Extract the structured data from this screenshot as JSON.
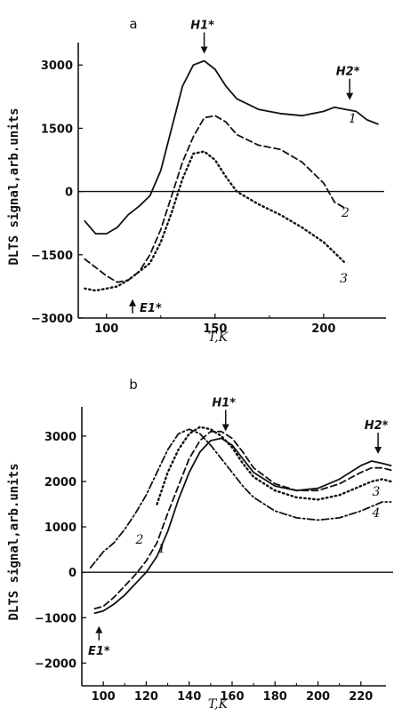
{
  "chart_data": [
    {
      "type": "line",
      "panel_label": "a",
      "xlabel": "T,K",
      "ylabel": "DLTS signal,arb.units",
      "xlim": [
        87,
        232
      ],
      "ylim": [
        -3000,
        3700
      ],
      "xticks": [
        100,
        150,
        200
      ],
      "yticks": [
        3000,
        1500,
        0,
        -1500,
        -3000
      ],
      "series": [
        {
          "name": "1",
          "style": "solid",
          "x": [
            90,
            95,
            100,
            105,
            110,
            115,
            120,
            125,
            130,
            135,
            140,
            145,
            150,
            155,
            160,
            170,
            180,
            190,
            200,
            205,
            210,
            215,
            220,
            225
          ],
          "y": [
            -700,
            -1000,
            -1000,
            -850,
            -550,
            -350,
            -100,
            500,
            1500,
            2500,
            3000,
            3100,
            2900,
            2500,
            2200,
            1950,
            1850,
            1800,
            1900,
            2000,
            1950,
            1900,
            1700,
            1600
          ]
        },
        {
          "name": "2",
          "style": "dashed",
          "x": [
            90,
            95,
            100,
            105,
            110,
            115,
            120,
            125,
            130,
            135,
            140,
            145,
            150,
            155,
            160,
            170,
            180,
            190,
            200,
            205,
            210
          ],
          "y": [
            -1600,
            -1800,
            -2000,
            -2150,
            -2100,
            -1900,
            -1500,
            -900,
            -100,
            700,
            1300,
            1750,
            1800,
            1650,
            1350,
            1100,
            1000,
            700,
            200,
            -250,
            -400
          ]
        },
        {
          "name": "3",
          "style": "dotted",
          "x": [
            90,
            95,
            100,
            105,
            110,
            115,
            120,
            125,
            130,
            135,
            140,
            145,
            150,
            155,
            160,
            170,
            180,
            190,
            200,
            205,
            210
          ],
          "y": [
            -2300,
            -2350,
            -2300,
            -2250,
            -2100,
            -1900,
            -1700,
            -1200,
            -500,
            300,
            900,
            950,
            750,
            350,
            0,
            -300,
            -550,
            -850,
            -1200,
            -1450,
            -1700
          ]
        }
      ],
      "annotations": [
        {
          "text": "H1*",
          "x": 145,
          "y": 3100,
          "arrow": "down"
        },
        {
          "text": "H2*",
          "x": 212,
          "y": 2000,
          "arrow": "down"
        },
        {
          "text": "E1*",
          "x": 112,
          "y": -2300,
          "arrow": "up"
        }
      ]
    },
    {
      "type": "line",
      "panel_label": "b",
      "xlabel": "T,K",
      "ylabel": "DLTS signal,arb.units",
      "xlim": [
        90,
        235
      ],
      "ylim": [
        -2500,
        3800
      ],
      "xticks": [
        100,
        120,
        140,
        160,
        180,
        200,
        220
      ],
      "yticks": [
        3000,
        2000,
        1000,
        0,
        -1000,
        -2000
      ],
      "series": [
        {
          "name": "1",
          "style": "solid",
          "x": [
            96,
            100,
            105,
            110,
            115,
            120,
            125,
            130,
            135,
            140,
            145,
            150,
            155,
            160,
            165,
            170,
            180,
            190,
            200,
            210,
            220,
            225,
            230,
            234
          ],
          "y": [
            -900,
            -850,
            -700,
            -500,
            -250,
            0,
            350,
            900,
            1600,
            2200,
            2650,
            2900,
            2950,
            2800,
            2500,
            2200,
            1900,
            1800,
            1850,
            2050,
            2350,
            2450,
            2400,
            2350
          ]
        },
        {
          "name": "2",
          "style": "dashed",
          "x": [
            96,
            100,
            105,
            110,
            115,
            120,
            125,
            130,
            135,
            140,
            145,
            150,
            155,
            160,
            165,
            170,
            180,
            190,
            200,
            210,
            220,
            225,
            230,
            234
          ],
          "y": [
            -800,
            -750,
            -550,
            -300,
            -50,
            250,
            650,
            1300,
            1900,
            2500,
            2900,
            3100,
            3100,
            2950,
            2650,
            2300,
            1950,
            1800,
            1800,
            1950,
            2200,
            2300,
            2300,
            2250
          ]
        },
        {
          "name": "3",
          "style": "dotted",
          "x": [
            125,
            130,
            135,
            140,
            145,
            150,
            155,
            160,
            165,
            170,
            180,
            190,
            200,
            210,
            220,
            225,
            230,
            234
          ],
          "y": [
            1500,
            2200,
            2700,
            3050,
            3200,
            3150,
            3000,
            2750,
            2400,
            2100,
            1800,
            1650,
            1600,
            1700,
            1900,
            2000,
            2050,
            2000
          ]
        },
        {
          "name": "4",
          "style": "dashdot",
          "x": [
            94,
            100,
            105,
            110,
            115,
            120,
            125,
            130,
            135,
            140,
            145,
            150,
            155,
            160,
            165,
            170,
            180,
            190,
            200,
            210,
            220,
            225,
            230,
            234
          ],
          "y": [
            100,
            450,
            650,
            950,
            1300,
            1700,
            2200,
            2700,
            3050,
            3150,
            3050,
            2800,
            2500,
            2200,
            1900,
            1650,
            1350,
            1200,
            1150,
            1200,
            1350,
            1450,
            1550,
            1550
          ]
        }
      ],
      "annotations": [
        {
          "text": "H1*",
          "x": 157,
          "y": 2950,
          "arrow": "down"
        },
        {
          "text": "H2*",
          "x": 228,
          "y": 2450,
          "arrow": "down"
        },
        {
          "text": "E1*",
          "x": 98,
          "y": -950,
          "arrow": "up"
        }
      ]
    }
  ]
}
